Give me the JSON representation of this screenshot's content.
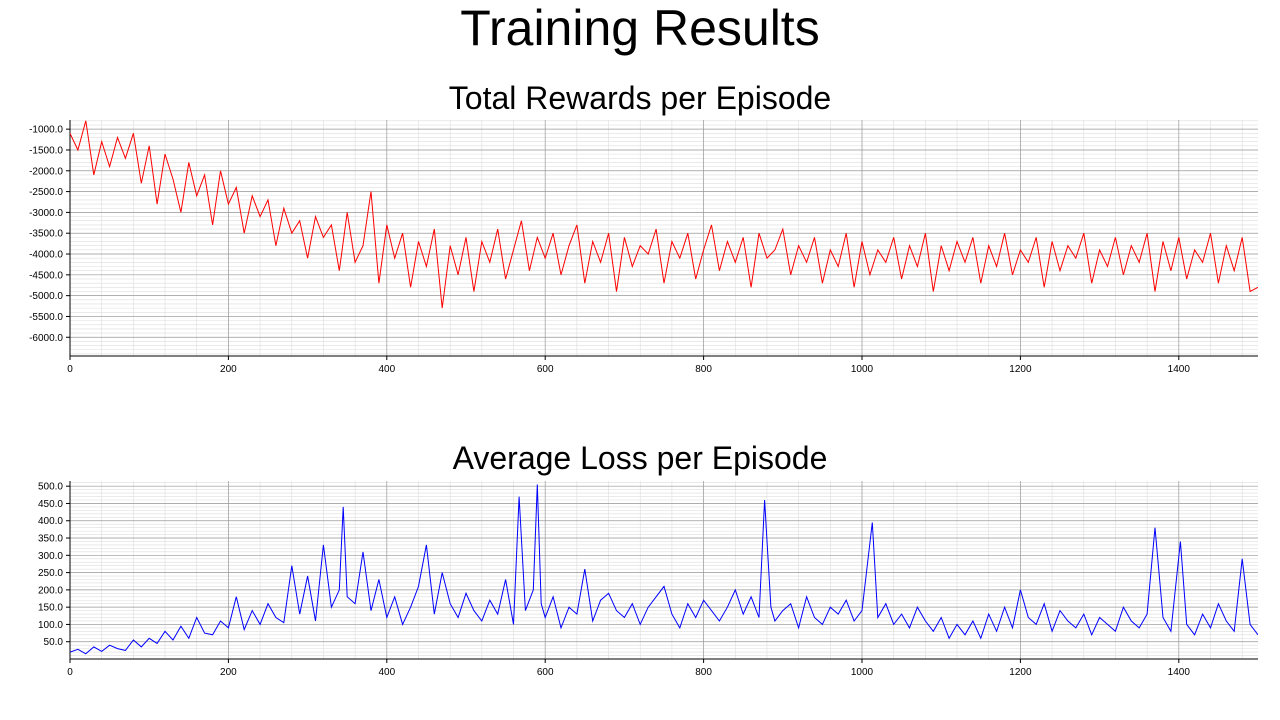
{
  "title": "Training Results",
  "colors": {
    "rewards": "#ff0000",
    "loss": "#0000ff",
    "grid_major": "#9a9a9a",
    "grid_minor": "#dddddd"
  },
  "chart_data": [
    {
      "type": "line",
      "title": "Total Rewards per Episode",
      "xlabel": "",
      "ylabel": "",
      "xlim": [
        0,
        1500
      ],
      "ylim": [
        -6450,
        -780
      ],
      "xticks": [
        0,
        200,
        400,
        600,
        800,
        1000,
        1200,
        1400
      ],
      "yticks": [
        -1000.0,
        -1500.0,
        -2000.0,
        -2500.0,
        -3000.0,
        -3500.0,
        -4000.0,
        -4500.0,
        -5000.0,
        -5500.0,
        -6000.0
      ],
      "ytick_labels": [
        "-1000.0",
        "-1500.0",
        "-2000.0",
        "-2500.0",
        "-3000.0",
        "-3500.0",
        "-4000.0",
        "-4500.0",
        "-5000.0",
        "-5500.0",
        "-6000.0"
      ],
      "grid": true,
      "series": [
        {
          "color": "#ff0000",
          "x": [
            0,
            10,
            20,
            30,
            40,
            50,
            60,
            70,
            80,
            90,
            100,
            110,
            120,
            130,
            140,
            150,
            160,
            170,
            180,
            190,
            200,
            210,
            220,
            230,
            240,
            250,
            260,
            270,
            280,
            290,
            300,
            310,
            320,
            330,
            340,
            350,
            360,
            370,
            380,
            390,
            400,
            410,
            420,
            430,
            440,
            450,
            460,
            470,
            480,
            490,
            500,
            510,
            520,
            530,
            540,
            550,
            560,
            570,
            580,
            590,
            600,
            610,
            620,
            630,
            640,
            650,
            660,
            670,
            680,
            690,
            700,
            710,
            720,
            730,
            740,
            750,
            760,
            770,
            780,
            790,
            800,
            810,
            820,
            830,
            840,
            850,
            860,
            870,
            880,
            890,
            900,
            910,
            920,
            930,
            940,
            950,
            960,
            970,
            980,
            990,
            1000,
            1010,
            1020,
            1030,
            1040,
            1050,
            1060,
            1070,
            1080,
            1090,
            1100,
            1110,
            1120,
            1130,
            1140,
            1150,
            1160,
            1170,
            1180,
            1190,
            1200,
            1210,
            1220,
            1230,
            1240,
            1250,
            1260,
            1270,
            1280,
            1290,
            1300,
            1310,
            1320,
            1330,
            1340,
            1350,
            1360,
            1370,
            1380,
            1390,
            1400,
            1410,
            1420,
            1430,
            1440,
            1450,
            1460,
            1470,
            1480,
            1490,
            1500
          ],
          "values": [
            -1100,
            -1500,
            -800,
            -2100,
            -1300,
            -1900,
            -1200,
            -1700,
            -1100,
            -2300,
            -1400,
            -2800,
            -1600,
            -2200,
            -3000,
            -1800,
            -2600,
            -2100,
            -3300,
            -2000,
            -2800,
            -2400,
            -3500,
            -2600,
            -3100,
            -2700,
            -3800,
            -2900,
            -3500,
            -3200,
            -4100,
            -3100,
            -3600,
            -3300,
            -4400,
            -3000,
            -4200,
            -3800,
            -2500,
            -4700,
            -3300,
            -4100,
            -3500,
            -4800,
            -3700,
            -4300,
            -3400,
            -5300,
            -3800,
            -4500,
            -3600,
            -4900,
            -3700,
            -4200,
            -3400,
            -4600,
            -3900,
            -3200,
            -4400,
            -3600,
            -4100,
            -3500,
            -4500,
            -3800,
            -3300,
            -4700,
            -3700,
            -4200,
            -3500,
            -4900,
            -3600,
            -4300,
            -3800,
            -4000,
            -3400,
            -4700,
            -3700,
            -4100,
            -3500,
            -4600,
            -3900,
            -3300,
            -4400,
            -3700,
            -4200,
            -3600,
            -4800,
            -3500,
            -4100,
            -3900,
            -3400,
            -4500,
            -3800,
            -4200,
            -3600,
            -4700,
            -3900,
            -4300,
            -3500,
            -4800,
            -3700,
            -4500,
            -3900,
            -4200,
            -3600,
            -4600,
            -3800,
            -4300,
            -3500,
            -4900,
            -3800,
            -4400,
            -3700,
            -4200,
            -3600,
            -4700,
            -3800,
            -4300,
            -3500,
            -4500,
            -3900,
            -4200,
            -3600,
            -4800,
            -3700,
            -4400,
            -3800,
            -4100,
            -3500,
            -4700,
            -3900,
            -4300,
            -3600,
            -4500,
            -3800,
            -4200,
            -3500,
            -4900,
            -3700,
            -4400,
            -3600,
            -4600,
            -3900,
            -4200,
            -3500,
            -4700,
            -3800,
            -4400,
            -3600,
            -4900,
            -4800
          ]
        }
      ]
    },
    {
      "type": "line",
      "title": "Average Loss per Episode",
      "xlabel": "",
      "ylabel": "",
      "xlim": [
        0,
        1500
      ],
      "ylim": [
        0,
        515
      ],
      "xticks": [
        0,
        200,
        400,
        600,
        800,
        1000,
        1200,
        1400
      ],
      "yticks": [
        50.0,
        100.0,
        150.0,
        200.0,
        250.0,
        300.0,
        350.0,
        400.0,
        450.0,
        500.0
      ],
      "ytick_labels": [
        "50.0",
        "100.0",
        "150.0",
        "200.0",
        "250.0",
        "300.0",
        "350.0",
        "400.0",
        "450.0",
        "500.0"
      ],
      "grid": true,
      "series": [
        {
          "color": "#0000ff",
          "x": [
            0,
            10,
            20,
            30,
            40,
            50,
            60,
            70,
            80,
            90,
            100,
            110,
            120,
            130,
            140,
            150,
            160,
            170,
            180,
            190,
            200,
            210,
            220,
            230,
            240,
            250,
            260,
            270,
            280,
            290,
            300,
            310,
            320,
            330,
            340,
            345,
            350,
            360,
            370,
            380,
            390,
            400,
            410,
            420,
            430,
            440,
            450,
            460,
            470,
            480,
            490,
            500,
            510,
            520,
            530,
            540,
            550,
            560,
            567,
            575,
            585,
            590,
            595,
            600,
            610,
            620,
            630,
            640,
            650,
            660,
            670,
            680,
            690,
            700,
            710,
            720,
            730,
            740,
            750,
            760,
            770,
            780,
            790,
            800,
            810,
            820,
            830,
            840,
            850,
            860,
            870,
            877,
            885,
            890,
            900,
            910,
            920,
            930,
            940,
            950,
            960,
            970,
            980,
            990,
            1000,
            1013,
            1020,
            1030,
            1040,
            1050,
            1060,
            1070,
            1080,
            1090,
            1100,
            1110,
            1120,
            1130,
            1140,
            1150,
            1160,
            1170,
            1180,
            1190,
            1200,
            1210,
            1220,
            1230,
            1240,
            1250,
            1260,
            1270,
            1280,
            1290,
            1300,
            1310,
            1320,
            1330,
            1340,
            1350,
            1360,
            1370,
            1380,
            1390,
            1402,
            1410,
            1420,
            1430,
            1440,
            1450,
            1460,
            1470,
            1480,
            1490,
            1500
          ],
          "values": [
            20,
            28,
            15,
            35,
            22,
            40,
            30,
            25,
            55,
            35,
            60,
            45,
            80,
            55,
            95,
            60,
            120,
            75,
            70,
            110,
            90,
            180,
            85,
            140,
            100,
            160,
            120,
            105,
            270,
            130,
            240,
            110,
            330,
            150,
            200,
            440,
            180,
            160,
            310,
            140,
            230,
            120,
            180,
            100,
            150,
            210,
            330,
            130,
            250,
            160,
            120,
            190,
            140,
            110,
            170,
            130,
            230,
            100,
            470,
            140,
            200,
            505,
            160,
            120,
            180,
            90,
            150,
            130,
            260,
            110,
            170,
            190,
            140,
            120,
            160,
            100,
            150,
            180,
            210,
            130,
            90,
            160,
            120,
            170,
            140,
            110,
            150,
            200,
            130,
            180,
            120,
            460,
            150,
            110,
            140,
            160,
            90,
            180,
            120,
            100,
            150,
            130,
            170,
            110,
            140,
            395,
            120,
            160,
            100,
            130,
            90,
            150,
            110,
            80,
            120,
            60,
            100,
            70,
            110,
            60,
            130,
            80,
            150,
            90,
            200,
            120,
            100,
            160,
            80,
            140,
            110,
            90,
            130,
            70,
            120,
            100,
            80,
            150,
            110,
            90,
            130,
            380,
            120,
            80,
            340,
            100,
            70,
            130,
            90,
            160,
            110,
            80,
            290,
            100,
            70
          ]
        }
      ]
    }
  ]
}
